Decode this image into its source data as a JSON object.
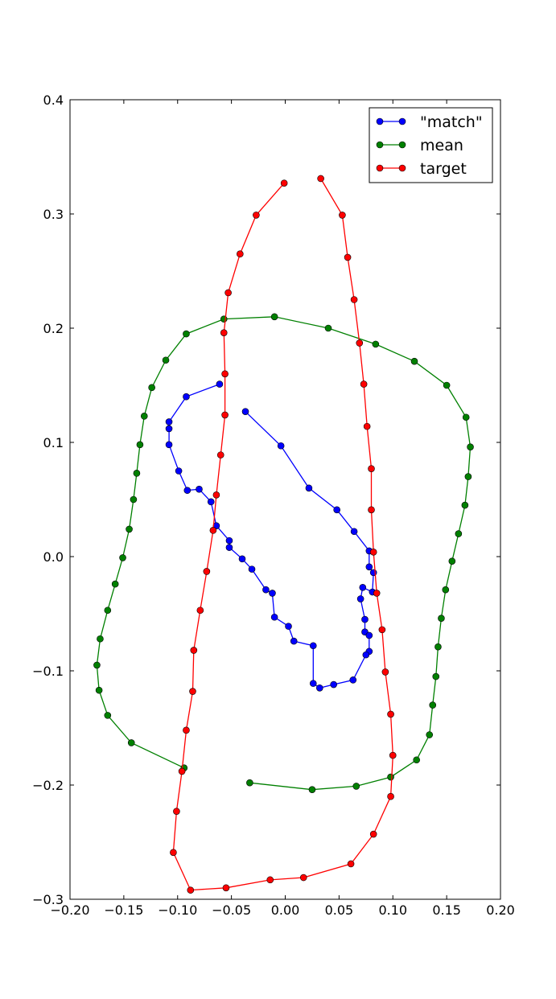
{
  "chart_data": {
    "type": "line",
    "title": "",
    "xlabel": "",
    "ylabel": "",
    "xlim": [
      -0.2,
      0.2
    ],
    "ylim": [
      -0.3,
      0.4
    ],
    "xticks": [
      "−0.20",
      "−0.15",
      "−0.10",
      "−0.05",
      "0.00",
      "0.05",
      "0.10",
      "0.15",
      "0.20"
    ],
    "yticks": [
      "−0.3",
      "−0.2",
      "−0.1",
      "0.0",
      "0.1",
      "0.2",
      "0.3",
      "0.4"
    ],
    "xtick_values": [
      -0.2,
      -0.15,
      -0.1,
      -0.05,
      0.0,
      0.05,
      0.1,
      0.15,
      0.2
    ],
    "ytick_values": [
      -0.3,
      -0.2,
      -0.1,
      0.0,
      0.1,
      0.2,
      0.3,
      0.4
    ],
    "grid": false,
    "legend": "top-right",
    "series": [
      {
        "name": "\"match\"",
        "color": "#0000ff",
        "points": [
          [
            -0.037,
            0.127
          ],
          [
            -0.004,
            0.097
          ],
          [
            0.022,
            0.06
          ],
          [
            0.048,
            0.041
          ],
          [
            0.064,
            0.022
          ],
          [
            0.078,
            0.005
          ],
          [
            0.078,
            -0.009
          ],
          [
            0.082,
            -0.014
          ],
          [
            0.081,
            -0.031
          ],
          [
            0.072,
            -0.027
          ],
          [
            0.07,
            -0.037
          ],
          [
            0.074,
            -0.055
          ],
          [
            0.074,
            -0.066
          ],
          [
            0.078,
            -0.069
          ],
          [
            0.078,
            -0.083
          ],
          [
            0.075,
            -0.086
          ],
          [
            0.063,
            -0.108
          ],
          [
            0.045,
            -0.112
          ],
          [
            0.032,
            -0.115
          ],
          [
            0.026,
            -0.111
          ],
          [
            0.026,
            -0.078
          ],
          [
            0.008,
            -0.074
          ],
          [
            0.003,
            -0.061
          ],
          [
            -0.01,
            -0.053
          ],
          [
            -0.012,
            -0.032
          ],
          [
            -0.018,
            -0.029
          ],
          [
            -0.031,
            -0.011
          ],
          [
            -0.04,
            -0.002
          ],
          [
            -0.052,
            0.008
          ],
          [
            -0.052,
            0.014
          ],
          [
            -0.064,
            0.027
          ],
          [
            -0.069,
            0.048
          ],
          [
            -0.08,
            0.059
          ],
          [
            -0.091,
            0.058
          ],
          [
            -0.099,
            0.075
          ],
          [
            -0.108,
            0.098
          ],
          [
            -0.108,
            0.112
          ],
          [
            -0.108,
            0.118
          ],
          [
            -0.092,
            0.14
          ],
          [
            -0.061,
            0.151
          ]
        ]
      },
      {
        "name": "mean",
        "color": "#008000",
        "points": [
          [
            -0.033,
            -0.198
          ],
          [
            0.025,
            -0.204
          ],
          [
            0.066,
            -0.201
          ],
          [
            0.098,
            -0.193
          ],
          [
            0.122,
            -0.178
          ],
          [
            0.134,
            -0.156
          ],
          [
            0.137,
            -0.13
          ],
          [
            0.14,
            -0.105
          ],
          [
            0.142,
            -0.079
          ],
          [
            0.145,
            -0.054
          ],
          [
            0.149,
            -0.029
          ],
          [
            0.155,
            -0.004
          ],
          [
            0.161,
            0.02
          ],
          [
            0.167,
            0.045
          ],
          [
            0.17,
            0.07
          ],
          [
            0.172,
            0.096
          ],
          [
            0.168,
            0.122
          ],
          [
            0.15,
            0.15
          ],
          [
            0.12,
            0.171
          ],
          [
            0.084,
            0.186
          ],
          [
            0.04,
            0.2
          ],
          [
            -0.01,
            0.21
          ],
          [
            -0.057,
            0.208
          ],
          [
            -0.092,
            0.195
          ],
          [
            -0.111,
            0.172
          ],
          [
            -0.124,
            0.148
          ],
          [
            -0.131,
            0.123
          ],
          [
            -0.135,
            0.098
          ],
          [
            -0.138,
            0.073
          ],
          [
            -0.141,
            0.05
          ],
          [
            -0.145,
            0.024
          ],
          [
            -0.151,
            -0.001
          ],
          [
            -0.158,
            -0.024
          ],
          [
            -0.165,
            -0.047
          ],
          [
            -0.172,
            -0.072
          ],
          [
            -0.175,
            -0.095
          ],
          [
            -0.173,
            -0.117
          ],
          [
            -0.165,
            -0.139
          ],
          [
            -0.143,
            -0.163
          ],
          [
            -0.094,
            -0.185
          ]
        ]
      },
      {
        "name": "target",
        "color": "#ff0000",
        "points": [
          [
            0.033,
            0.331
          ],
          [
            0.053,
            0.299
          ],
          [
            0.058,
            0.262
          ],
          [
            0.064,
            0.225
          ],
          [
            0.069,
            0.187
          ],
          [
            0.073,
            0.151
          ],
          [
            0.076,
            0.114
          ],
          [
            0.08,
            0.077
          ],
          [
            0.08,
            0.041
          ],
          [
            0.082,
            0.004
          ],
          [
            0.085,
            -0.032
          ],
          [
            0.09,
            -0.064
          ],
          [
            0.093,
            -0.101
          ],
          [
            0.098,
            -0.138
          ],
          [
            0.1,
            -0.174
          ],
          [
            0.098,
            -0.21
          ],
          [
            0.082,
            -0.243
          ],
          [
            0.061,
            -0.269
          ],
          [
            0.017,
            -0.281
          ],
          [
            -0.014,
            -0.283
          ],
          [
            -0.055,
            -0.29
          ],
          [
            -0.088,
            -0.292
          ],
          [
            -0.104,
            -0.259
          ],
          [
            -0.101,
            -0.223
          ],
          [
            -0.096,
            -0.188
          ],
          [
            -0.092,
            -0.152
          ],
          [
            -0.086,
            -0.118
          ],
          [
            -0.085,
            -0.082
          ],
          [
            -0.079,
            -0.047
          ],
          [
            -0.073,
            -0.013
          ],
          [
            -0.067,
            0.023
          ],
          [
            -0.064,
            0.054
          ],
          [
            -0.06,
            0.089
          ],
          [
            -0.056,
            0.124
          ],
          [
            -0.056,
            0.16
          ],
          [
            -0.057,
            0.196
          ],
          [
            -0.053,
            0.231
          ],
          [
            -0.042,
            0.265
          ],
          [
            -0.027,
            0.299
          ],
          [
            -0.001,
            0.327
          ]
        ]
      }
    ]
  }
}
